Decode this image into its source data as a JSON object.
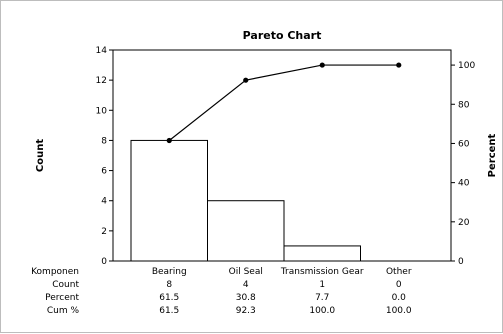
{
  "chart_data": {
    "type": "bar",
    "title": "Pareto Chart",
    "xlabel": "Komponen",
    "ylabel_left": "Count",
    "ylabel_right": "Percent",
    "categories": [
      "Bearing",
      "Oil Seal",
      "Transmission Gear",
      "Other"
    ],
    "series": [
      {
        "values": [
          8,
          4,
          1,
          0
        ]
      },
      {
        "values": [
          61.5,
          92.3,
          100.0,
          100.0
        ]
      }
    ],
    "ylim_left": [
      0,
      14
    ],
    "yticks_left": [
      0,
      2,
      4,
      6,
      8,
      10,
      12,
      14
    ],
    "ylim_right": [
      0,
      107.7
    ],
    "yticks_right": [
      0,
      20,
      40,
      60,
      80,
      100
    ],
    "grid": false,
    "table": {
      "row_headers": [
        "Komponen",
        "Count",
        "Percent",
        "Cum %"
      ],
      "count": [
        "8",
        "4",
        "1",
        "0"
      ],
      "percent": [
        "61.5",
        "30.8",
        "7.7",
        "0.0"
      ],
      "cum_percent": [
        "61.5",
        "92.3",
        "100.0",
        "100.0"
      ]
    },
    "colors": {
      "bar_fill": "#ffffff",
      "bar_stroke": "#000000",
      "line": "#000000"
    }
  }
}
